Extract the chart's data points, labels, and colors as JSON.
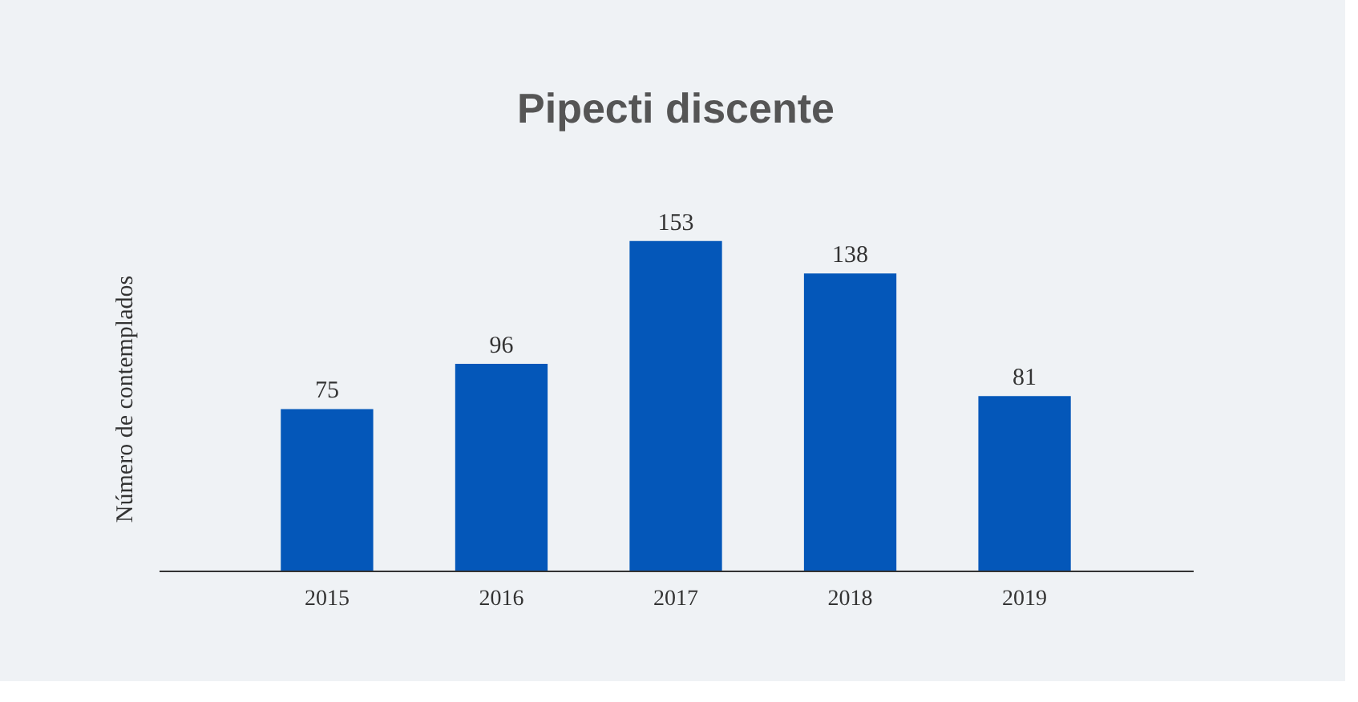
{
  "chart_data": {
    "type": "bar",
    "title": "Pipecti discente",
    "ylabel": "Número de contemplados",
    "categories": [
      "2015",
      "2016",
      "2017",
      "2018",
      "2019"
    ],
    "values": [
      75,
      96,
      153,
      138,
      81
    ],
    "color": "#0457b9",
    "data_labels": true
  }
}
